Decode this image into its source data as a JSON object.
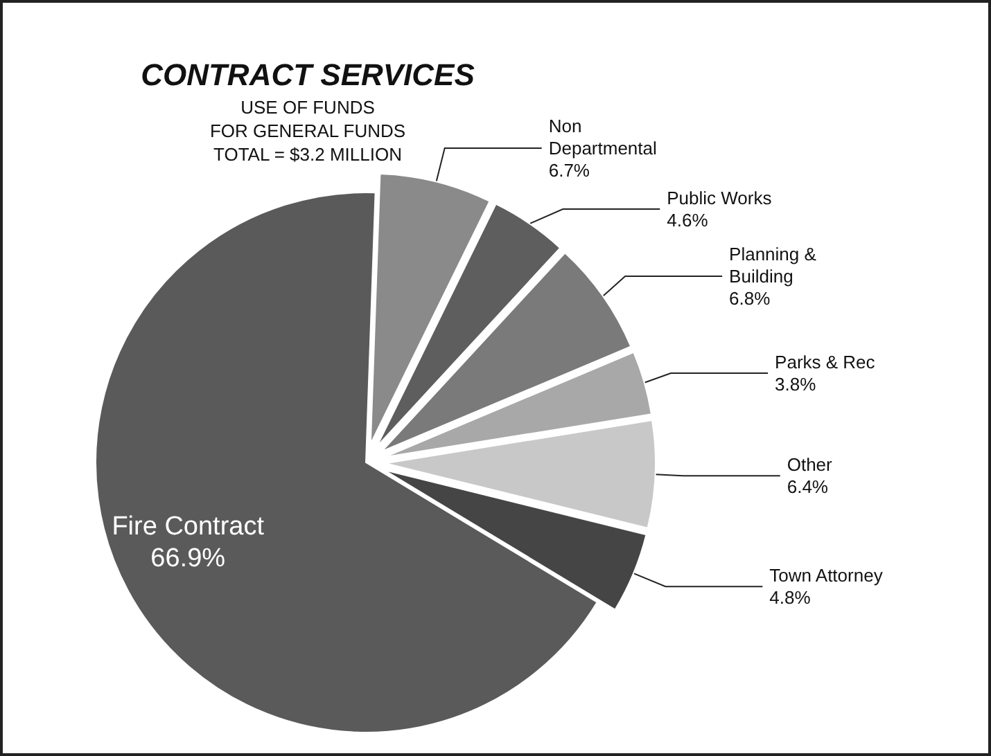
{
  "chart_data": {
    "type": "pie",
    "title": "CONTRACT SERVICES",
    "subtitle": "USE OF FUNDS\nFOR GENERAL FUNDS\nTOTAL = $3.2 MILLION",
    "categories": [
      "Non Departmental",
      "Public Works",
      "Planning & Building",
      "Parks & Rec",
      "Other",
      "Town Attorney",
      "Fire Contract"
    ],
    "values": [
      6.7,
      4.6,
      6.8,
      3.8,
      6.4,
      4.8,
      66.9
    ],
    "colors": [
      "#8a8a8a",
      "#5e5e5e",
      "#7a7a7a",
      "#a8a8a8",
      "#c8c8c8",
      "#454545",
      "#5a5a5a"
    ],
    "value_labels": [
      "6.7%",
      "4.6%",
      "6.8%",
      "3.8%",
      "6.4%",
      "4.8%",
      "66.9%"
    ],
    "legend": false
  }
}
